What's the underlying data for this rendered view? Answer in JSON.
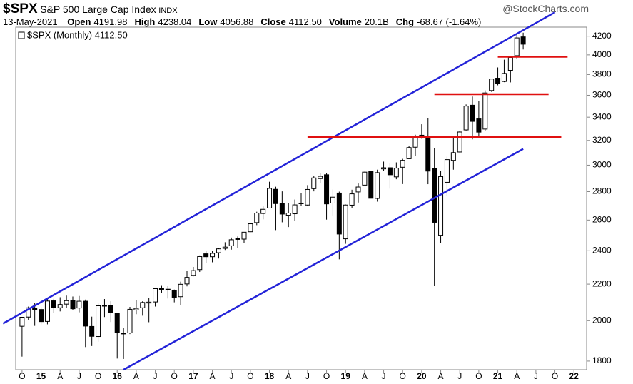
{
  "header": {
    "symbol": "$SPX",
    "name": "S&P 500 Large Cap Index",
    "exchange": "INDX",
    "source": "@StockCharts.com",
    "date": "13-May-2021",
    "fields": [
      {
        "label": "Open",
        "value": "4191.98"
      },
      {
        "label": "High",
        "value": "4238.04"
      },
      {
        "label": "Low",
        "value": "4056.88"
      },
      {
        "label": "Close",
        "value": "4112.50"
      },
      {
        "label": "Volume",
        "value": "20.1B"
      },
      {
        "label": "Chg",
        "value": "-68.67 (-1.64%)"
      }
    ]
  },
  "chart_data": {
    "type": "candlestick",
    "legend": "$SPX (Monthly) 4112.50",
    "log_scale": true,
    "x": [
      "2014-10",
      "2014-11",
      "2014-12",
      "2015-01",
      "2015-02",
      "2015-03",
      "2015-04",
      "2015-05",
      "2015-06",
      "2015-07",
      "2015-08",
      "2015-09",
      "2015-10",
      "2015-11",
      "2015-12",
      "2016-01",
      "2016-02",
      "2016-03",
      "2016-04",
      "2016-05",
      "2016-06",
      "2016-07",
      "2016-08",
      "2016-09",
      "2016-10",
      "2016-11",
      "2016-12",
      "2017-01",
      "2017-02",
      "2017-03",
      "2017-04",
      "2017-05",
      "2017-06",
      "2017-07",
      "2017-08",
      "2017-09",
      "2017-10",
      "2017-11",
      "2017-12",
      "2018-01",
      "2018-02",
      "2018-03",
      "2018-04",
      "2018-05",
      "2018-06",
      "2018-07",
      "2018-08",
      "2018-09",
      "2018-10",
      "2018-11",
      "2018-12",
      "2019-01",
      "2019-02",
      "2019-03",
      "2019-04",
      "2019-05",
      "2019-06",
      "2019-07",
      "2019-08",
      "2019-09",
      "2019-10",
      "2019-11",
      "2019-12",
      "2020-01",
      "2020-02",
      "2020-03",
      "2020-04",
      "2020-05",
      "2020-06",
      "2020-07",
      "2020-08",
      "2020-09",
      "2020-10",
      "2020-11",
      "2020-12",
      "2021-01",
      "2021-02",
      "2021-03",
      "2021-04",
      "2021-05"
    ],
    "open": [
      1971,
      2019,
      2065,
      2059,
      1996,
      2106,
      2068,
      2088,
      2109,
      2067,
      2104,
      1970,
      1919,
      2081,
      2082,
      2038,
      1937,
      1937,
      2057,
      2068,
      2094,
      2100,
      2174,
      2171,
      2165,
      2129,
      2201,
      2251,
      2285,
      2381,
      2363,
      2388,
      2415,
      2431,
      2477,
      2474,
      2522,
      2583,
      2645,
      2683,
      2817,
      2715,
      2633,
      2643,
      2718,
      2704,
      2822,
      2897,
      2926,
      2718,
      2790,
      2476,
      2703,
      2798,
      2848,
      2953,
      2751,
      2971,
      2980,
      2910,
      2984,
      3051,
      3144,
      3244,
      3235,
      2974,
      2499,
      2869,
      3038,
      3105,
      3289,
      3508,
      3385,
      3296,
      3645,
      3764,
      3732,
      3842,
      3992,
      4192
    ],
    "high": [
      2018,
      2075,
      2093,
      2072,
      2120,
      2117,
      2126,
      2135,
      2130,
      2133,
      2113,
      2021,
      2094,
      2116,
      2104,
      2038,
      1963,
      2073,
      2112,
      2104,
      2120,
      2178,
      2194,
      2188,
      2169,
      2214,
      2278,
      2301,
      2371,
      2401,
      2398,
      2418,
      2454,
      2484,
      2491,
      2520,
      2582,
      2657,
      2694,
      2873,
      2836,
      2802,
      2718,
      2743,
      2791,
      2848,
      2916,
      2941,
      2940,
      2816,
      2800,
      2708,
      2814,
      2860,
      2949,
      2955,
      2965,
      3028,
      3014,
      3022,
      3050,
      3154,
      3248,
      3338,
      3394,
      3137,
      2955,
      3068,
      3233,
      3280,
      3515,
      3588,
      3550,
      3646,
      3760,
      3871,
      3950,
      3983,
      4218,
      4238
    ],
    "low": [
      1821,
      2002,
      1973,
      1981,
      1981,
      2040,
      2049,
      2068,
      2056,
      2044,
      1867,
      1872,
      1893,
      2019,
      1993,
      1812,
      1810,
      1931,
      2034,
      2026,
      1992,
      2075,
      2148,
      2119,
      2098,
      2084,
      2187,
      2245,
      2271,
      2323,
      2329,
      2352,
      2405,
      2407,
      2417,
      2447,
      2520,
      2566,
      2605,
      2682,
      2533,
      2585,
      2553,
      2594,
      2698,
      2698,
      2802,
      2864,
      2603,
      2631,
      2347,
      2444,
      2681,
      2722,
      2848,
      2751,
      2728,
      2953,
      2822,
      2892,
      2856,
      3050,
      3070,
      3214,
      2855,
      2192,
      2447,
      2766,
      2965,
      3101,
      3284,
      3209,
      3234,
      3280,
      3633,
      3695,
      3725,
      3723,
      3955,
      4057
    ],
    "close": [
      2018,
      2068,
      2059,
      1995,
      2105,
      2068,
      2086,
      2107,
      2063,
      2104,
      1972,
      1920,
      2079,
      2080,
      2044,
      1940,
      1932,
      2060,
      2065,
      2097,
      2099,
      2174,
      2171,
      2168,
      2126,
      2199,
      2239,
      2279,
      2364,
      2363,
      2384,
      2412,
      2423,
      2470,
      2472,
      2519,
      2575,
      2648,
      2674,
      2824,
      2714,
      2641,
      2648,
      2705,
      2718,
      2816,
      2902,
      2914,
      2712,
      2760,
      2507,
      2704,
      2784,
      2834,
      2946,
      2752,
      2942,
      2980,
      2926,
      2977,
      3038,
      3141,
      3231,
      3226,
      2954,
      2585,
      2912,
      3044,
      3100,
      3271,
      3500,
      3363,
      3270,
      3622,
      3756,
      3714,
      3811,
      3973,
      4181,
      4113
    ],
    "xlim": [
      "2014-09",
      "2022-03"
    ],
    "xticks": [
      {
        "value": "2014-10",
        "label": "O"
      },
      {
        "value": "2015-01",
        "label": "15"
      },
      {
        "value": "2015-04",
        "label": "A"
      },
      {
        "value": "2015-07",
        "label": "J"
      },
      {
        "value": "2015-10",
        "label": "O"
      },
      {
        "value": "2016-01",
        "label": "16"
      },
      {
        "value": "2016-04",
        "label": "A"
      },
      {
        "value": "2016-07",
        "label": "J"
      },
      {
        "value": "2016-10",
        "label": "O"
      },
      {
        "value": "2017-01",
        "label": "17"
      },
      {
        "value": "2017-04",
        "label": "A"
      },
      {
        "value": "2017-07",
        "label": "J"
      },
      {
        "value": "2017-10",
        "label": "O"
      },
      {
        "value": "2018-01",
        "label": "18"
      },
      {
        "value": "2018-04",
        "label": "A"
      },
      {
        "value": "2018-07",
        "label": "J"
      },
      {
        "value": "2018-10",
        "label": "O"
      },
      {
        "value": "2019-01",
        "label": "19"
      },
      {
        "value": "2019-04",
        "label": "A"
      },
      {
        "value": "2019-07",
        "label": "J"
      },
      {
        "value": "2019-10",
        "label": "O"
      },
      {
        "value": "2020-01",
        "label": "20"
      },
      {
        "value": "2020-04",
        "label": "A"
      },
      {
        "value": "2020-07",
        "label": "J"
      },
      {
        "value": "2020-10",
        "label": "O"
      },
      {
        "value": "2021-01",
        "label": "21"
      },
      {
        "value": "2021-04",
        "label": "A"
      },
      {
        "value": "2021-07",
        "label": "J"
      },
      {
        "value": "2021-10",
        "label": "O"
      },
      {
        "value": "2022-01",
        "label": "22"
      }
    ],
    "ylim": [
      1760,
      4300
    ],
    "yticks": [
      1800,
      2000,
      2200,
      2400,
      2600,
      2800,
      3000,
      3200,
      3400,
      3600,
      3800,
      4000,
      4200
    ],
    "trend_lines": [
      {
        "color": "#2323d8",
        "x": [
          "2014-07",
          "2021-10"
        ],
        "y": [
          1985,
          4470
        ]
      },
      {
        "color": "#2323d8",
        "x": [
          "2016-02",
          "2021-05"
        ],
        "y": [
          1760,
          3130
        ]
      }
    ],
    "levels": [
      {
        "color": "#e01010",
        "x": [
          "2018-07",
          "2021-11"
        ],
        "y": 3230
      },
      {
        "color": "#e01010",
        "x": [
          "2020-03",
          "2021-09"
        ],
        "y": 3610
      },
      {
        "color": "#e01010",
        "x": [
          "2021-01",
          "2021-12"
        ],
        "y": 3980
      }
    ]
  }
}
